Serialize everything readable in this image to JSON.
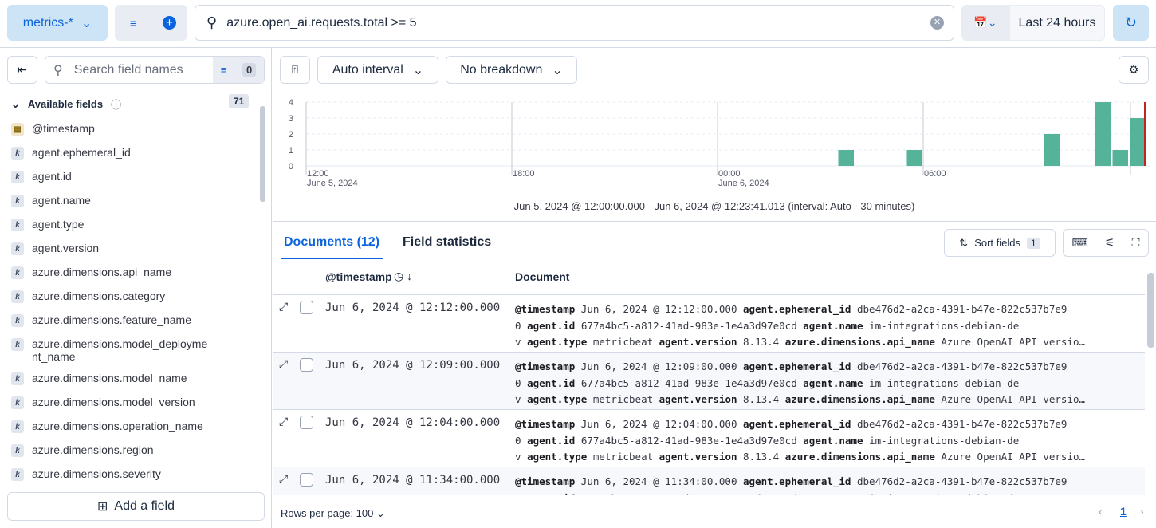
{
  "topbar": {
    "data_view": "metrics-*",
    "query": "azure.open_ai.requests.total >= 5",
    "time_range": "Last 24 hours"
  },
  "sidebar": {
    "search_placeholder": "Search field names",
    "filter_count": "0",
    "available_label": "Available fields",
    "available_count": "71",
    "add_field": "Add a field",
    "fields": [
      {
        "name": "@timestamp",
        "type": "date"
      },
      {
        "name": "agent.ephemeral_id",
        "type": "k"
      },
      {
        "name": "agent.id",
        "type": "k"
      },
      {
        "name": "agent.name",
        "type": "k"
      },
      {
        "name": "agent.type",
        "type": "k"
      },
      {
        "name": "agent.version",
        "type": "k"
      },
      {
        "name": "azure.dimensions.api_name",
        "type": "k"
      },
      {
        "name": "azure.dimensions.category",
        "type": "k"
      },
      {
        "name": "azure.dimensions.feature_name",
        "type": "k"
      },
      {
        "name": "azure.dimensions.model_deployme\nnt_name",
        "type": "k"
      },
      {
        "name": "azure.dimensions.model_name",
        "type": "k"
      },
      {
        "name": "azure.dimensions.model_version",
        "type": "k"
      },
      {
        "name": "azure.dimensions.operation_name",
        "type": "k"
      },
      {
        "name": "azure.dimensions.region",
        "type": "k"
      },
      {
        "name": "azure.dimensions.severity",
        "type": "k"
      }
    ]
  },
  "histogram": {
    "interval": "Auto interval",
    "breakdown": "No breakdown",
    "caption": "Jun 5, 2024 @ 12:00:00.000 - Jun 6, 2024 @ 12:23:41.013 (interval: Auto - 30 minutes)"
  },
  "chart_data": {
    "type": "bar",
    "y_ticks": [
      "0",
      "1",
      "2",
      "3",
      "4"
    ],
    "ylim": [
      0,
      4
    ],
    "x_ticks": [
      {
        "time": "12:00",
        "date": "June 5, 2024"
      },
      {
        "time": "18:00",
        "date": ""
      },
      {
        "time": "00:00",
        "date": "June 6, 2024"
      },
      {
        "time": "06:00",
        "date": ""
      }
    ],
    "bars": [
      {
        "x": "Jun 6 03:30",
        "value": 1
      },
      {
        "x": "Jun 6 05:30",
        "value": 1
      },
      {
        "x": "Jun 6 09:30",
        "value": 2
      },
      {
        "x": "Jun 6 11:00",
        "value": 4
      },
      {
        "x": "Jun 6 11:30",
        "value": 1
      },
      {
        "x": "Jun 6 12:00",
        "value": 3
      }
    ],
    "bar_color": "#54b399",
    "now_marker_color": "#bd271e",
    "grid": true
  },
  "tabs": {
    "documents": "Documents (12)",
    "field_stats": "Field statistics",
    "sort_fields": "Sort fields",
    "sort_count": "1"
  },
  "table": {
    "col_timestamp": "@timestamp",
    "col_document": "Document",
    "rows": [
      {
        "ts": "Jun 6, 2024 @ 12:12:00.000",
        "doc_ts": "Jun 6, 2024 @ 12:12:00.000"
      },
      {
        "ts": "Jun 6, 2024 @ 12:09:00.000",
        "doc_ts": "Jun 6, 2024 @ 12:09:00.000"
      },
      {
        "ts": "Jun 6, 2024 @ 12:04:00.000",
        "doc_ts": "Jun 6, 2024 @ 12:04:00.000"
      },
      {
        "ts": "Jun 6, 2024 @ 11:34:00.000",
        "doc_ts": "Jun 6, 2024 @ 11:34:00.000"
      }
    ],
    "doc_fields": {
      "k_ts": "@timestamp",
      "k_eph": "agent.ephemeral_id",
      "v_eph": "dbe476d2-a2ca-4391-b47e-822c537b7e9",
      "v_eph2": "0",
      "k_id": "agent.id",
      "v_id": "677a4bc5-a812-41ad-983e-1e4a3d97e0cd",
      "k_name": "agent.name",
      "v_name": "im-integrations-debian-de",
      "v_name2": "v",
      "k_type": "agent.type",
      "v_type": "metricbeat",
      "k_ver": "agent.version",
      "v_ver": "8.13.4",
      "k_api": "azure.dimensions.api_name",
      "v_api": "Azure OpenAI API versio…"
    }
  },
  "footer": {
    "rows_per_page": "Rows per page: 100",
    "page": "1"
  }
}
